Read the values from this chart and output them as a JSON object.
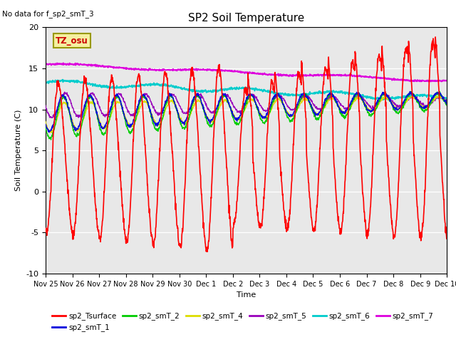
{
  "title": "SP2 Soil Temperature",
  "note": "No data for f_sp2_smT_3",
  "xlabel": "Time",
  "ylabel": "Soil Temperature (C)",
  "ylim": [
    -10,
    20
  ],
  "bg_color": "#e8e8e8",
  "tz_label": "TZ_osu",
  "colors": {
    "Tsurface": "#ff0000",
    "smT_1": "#0000dd",
    "smT_2": "#00cc00",
    "smT_4": "#dddd00",
    "smT_5": "#9900bb",
    "smT_6": "#00cccc",
    "smT_7": "#dd00dd"
  },
  "xtick_labels": [
    "Nov 25",
    "Nov 26",
    "Nov 27",
    "Nov 28",
    "Nov 29",
    "Nov 30",
    "Dec 1",
    "Dec 2",
    "Dec 3",
    "Dec 4",
    "Dec 5",
    "Dec 6",
    "Dec 7",
    "Dec 8",
    "Dec 9",
    "Dec 10"
  ],
  "ytick_labels": [
    "-10",
    "-5",
    "0",
    "5",
    "10",
    "15",
    "20"
  ],
  "ytick_vals": [
    -10,
    -5,
    0,
    5,
    10,
    15,
    20
  ],
  "n_points": 1500
}
